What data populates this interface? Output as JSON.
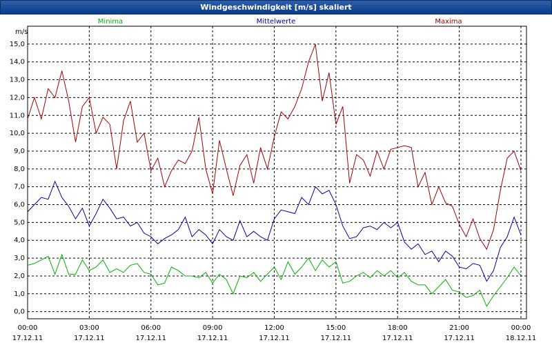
{
  "chart_data": {
    "type": "line",
    "title": "Windgeschwindigkeit [m/s] skaliert",
    "y_label": "m/s",
    "x": [
      0,
      20,
      40,
      60,
      80,
      100,
      120,
      140,
      160,
      180,
      200,
      220,
      240,
      260,
      280,
      300,
      320,
      340,
      360,
      380,
      400,
      420,
      440,
      460,
      480,
      500,
      520,
      540,
      560,
      580,
      600,
      620,
      640,
      660,
      680,
      700,
      720,
      740,
      760,
      780,
      800,
      820,
      840,
      860,
      880,
      900,
      920,
      940,
      960,
      980,
      1000,
      1020,
      1040,
      1060,
      1080,
      1100,
      1120,
      1140,
      1160,
      1180,
      1200,
      1220,
      1240,
      1260,
      1280,
      1300,
      1320,
      1340,
      1360,
      1380,
      1400,
      1420,
      1440
    ],
    "xlim": [
      0,
      1440
    ],
    "xticks": [
      {
        "value": 0,
        "label": "00:00",
        "date": "17.12.11"
      },
      {
        "value": 180,
        "label": "03:00",
        "date": "17.12.11"
      },
      {
        "value": 360,
        "label": "06:00",
        "date": "17.12.11"
      },
      {
        "value": 540,
        "label": "09:00",
        "date": "17.12.11"
      },
      {
        "value": 720,
        "label": "12:00",
        "date": "17.12.11"
      },
      {
        "value": 900,
        "label": "15:00",
        "date": "17.12.11"
      },
      {
        "value": 1080,
        "label": "18:00",
        "date": "17.12.11"
      },
      {
        "value": 1260,
        "label": "21:00",
        "date": "17.12.11"
      },
      {
        "value": 1440,
        "label": "00:00",
        "date": "18.12.11"
      }
    ],
    "ylim": [
      -0.4,
      16
    ],
    "yticks": [
      {
        "value": 0,
        "label": "0,0"
      },
      {
        "value": 1,
        "label": "1,0"
      },
      {
        "value": 2,
        "label": "2,0"
      },
      {
        "value": 3,
        "label": "3,0"
      },
      {
        "value": 4,
        "label": "4,0"
      },
      {
        "value": 5,
        "label": "5,0"
      },
      {
        "value": 6,
        "label": "6,0"
      },
      {
        "value": 7,
        "label": "7,0"
      },
      {
        "value": 8,
        "label": "8,0"
      },
      {
        "value": 9,
        "label": "9,0"
      },
      {
        "value": 10,
        "label": "10,0"
      },
      {
        "value": 11,
        "label": "11,0"
      },
      {
        "value": 12,
        "label": "12,0"
      },
      {
        "value": 13,
        "label": "13,0"
      },
      {
        "value": 14,
        "label": "14,0"
      },
      {
        "value": 15,
        "label": "15,0"
      }
    ],
    "grid": true,
    "series": [
      {
        "name": "Minima",
        "color": "#00b000",
        "values": [
          2.6,
          2.7,
          2.9,
          3.1,
          2.1,
          3.2,
          2.1,
          2.1,
          2.9,
          2.3,
          2.5,
          2.9,
          2.2,
          2.4,
          2.2,
          2.6,
          2.7,
          2.2,
          2.1,
          1.5,
          1.6,
          2.5,
          2.3,
          2.0,
          2.0,
          1.9,
          2.2,
          1.6,
          2.1,
          1.8,
          1.0,
          2.0,
          1.9,
          2.2,
          1.7,
          2.1,
          2.5,
          1.8,
          2.8,
          2.1,
          2.5,
          3.0,
          2.3,
          2.9,
          2.5,
          2.8,
          1.6,
          1.7,
          2.0,
          2.2,
          1.9,
          2.3,
          2.0,
          2.3,
          1.9,
          2.2,
          1.7,
          1.5,
          1.5,
          1.0,
          1.4,
          1.8,
          1.2,
          1.1,
          0.8,
          0.9,
          1.2,
          0.3,
          0.9,
          1.4,
          1.9,
          2.5,
          2.0
        ]
      },
      {
        "name": "Mittelwerte",
        "color": "#0000a0",
        "values": [
          5.6,
          6.0,
          6.4,
          6.3,
          7.3,
          6.4,
          5.9,
          5.2,
          5.8,
          4.8,
          5.5,
          6.3,
          5.8,
          5.2,
          5.3,
          4.8,
          5.0,
          4.4,
          4.2,
          3.8,
          4.1,
          4.3,
          4.6,
          5.3,
          4.2,
          4.6,
          4.3,
          3.8,
          4.6,
          4.2,
          4.0,
          5.1,
          4.2,
          4.5,
          4.2,
          4.0,
          5.2,
          5.7,
          5.6,
          5.5,
          6.4,
          6.0,
          7.0,
          6.6,
          6.8,
          6.0,
          4.8,
          4.1,
          4.2,
          4.7,
          4.8,
          4.6,
          5.0,
          4.7,
          5.0,
          3.9,
          3.5,
          3.8,
          3.2,
          3.4,
          2.8,
          3.4,
          3.1,
          2.5,
          2.4,
          2.7,
          2.6,
          1.7,
          2.3,
          3.6,
          4.2,
          5.3,
          4.3
        ]
      },
      {
        "name": "Maxima",
        "color": "#a00000",
        "values": [
          10.8,
          12.0,
          10.8,
          12.5,
          12.0,
          13.5,
          11.8,
          9.5,
          11.5,
          12.0,
          10.0,
          10.9,
          10.5,
          8.0,
          10.7,
          11.8,
          9.5,
          10.0,
          7.9,
          8.6,
          7.0,
          7.9,
          8.5,
          8.3,
          9.0,
          10.9,
          8.0,
          6.6,
          9.6,
          8.0,
          6.5,
          8.2,
          8.8,
          7.2,
          9.2,
          8.0,
          9.8,
          11.2,
          10.8,
          11.5,
          12.5,
          14.0,
          15.0,
          11.8,
          13.4,
          10.5,
          11.5,
          7.2,
          8.8,
          8.5,
          7.6,
          9.0,
          8.0,
          9.1,
          9.2,
          9.3,
          9.2,
          7.0,
          7.8,
          6.0,
          7.0,
          6.1,
          5.9,
          4.9,
          4.2,
          5.2,
          4.1,
          3.5,
          4.6,
          6.8,
          8.6,
          9.0,
          7.9
        ]
      }
    ]
  }
}
